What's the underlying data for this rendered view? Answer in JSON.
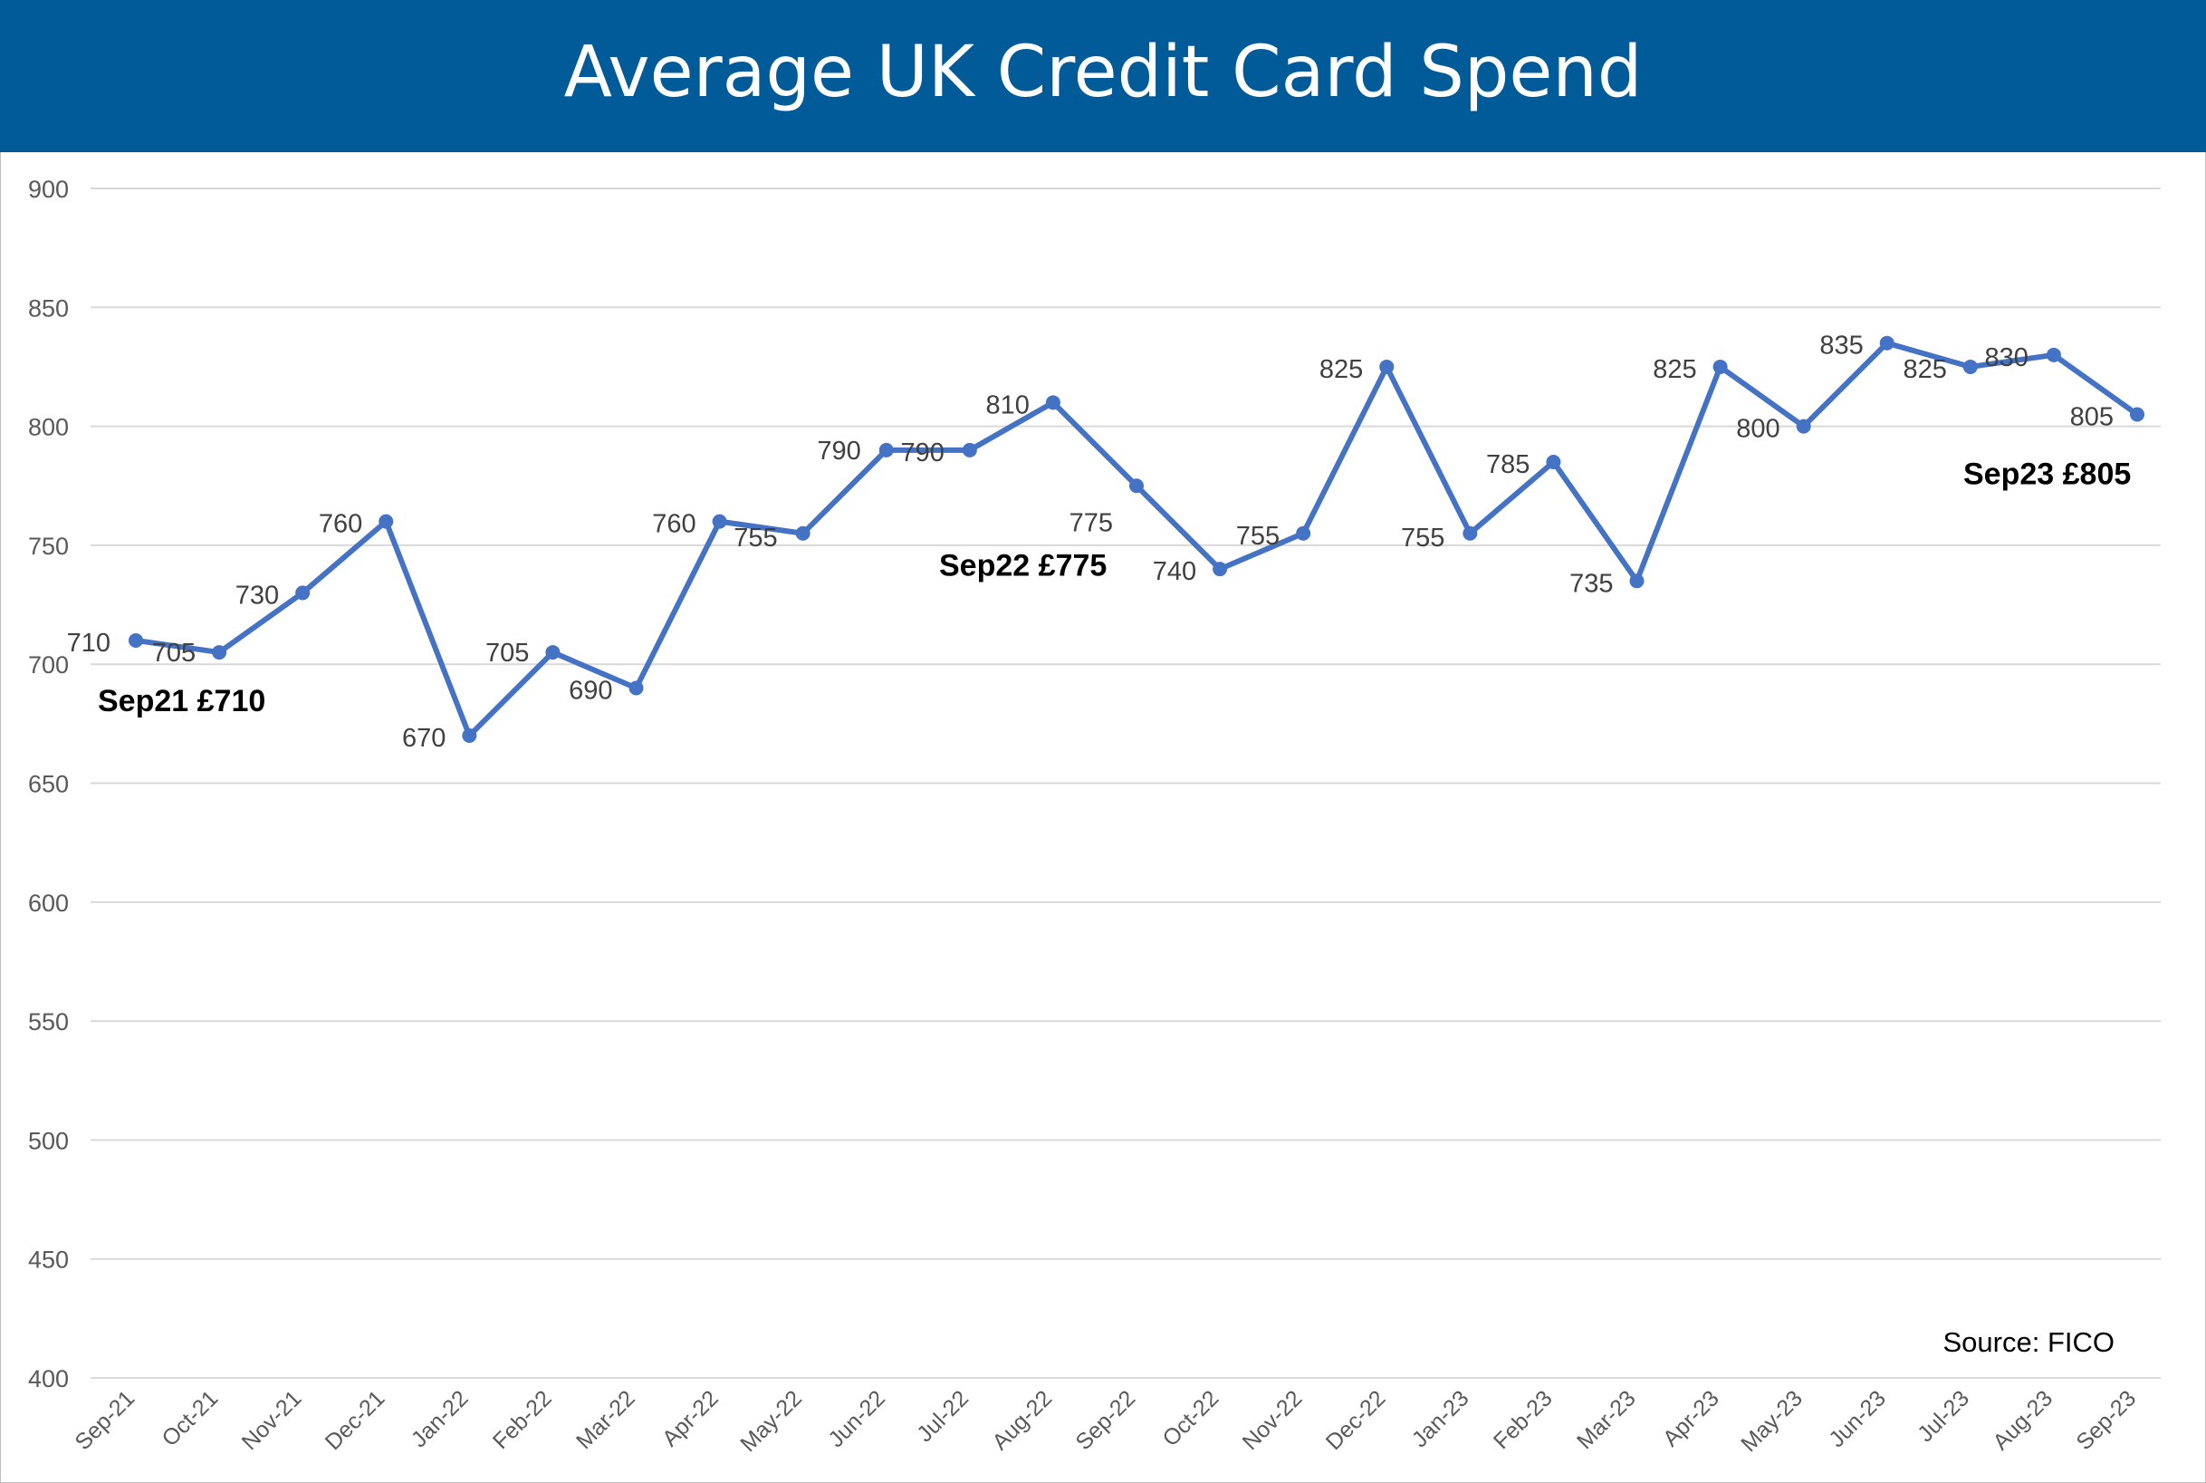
{
  "chart_data": {
    "type": "line",
    "title": "Average UK Credit Card Spend",
    "xlabel": "",
    "ylabel": "",
    "ylim": [
      400,
      900
    ],
    "yticks": [
      400,
      450,
      500,
      550,
      600,
      650,
      700,
      750,
      800,
      850,
      900
    ],
    "grid": true,
    "categories": [
      "Sep-21",
      "Oct-21",
      "Nov-21",
      "Dec-21",
      "Jan-22",
      "Feb-22",
      "Mar-22",
      "Apr-22",
      "May-22",
      "Jun-22",
      "Jul-22",
      "Aug-22",
      "Sep-22",
      "Oct-22",
      "Nov-22",
      "Dec-22",
      "Jan-23",
      "Feb-23",
      "Mar-23",
      "Apr-23",
      "May-23",
      "Jun-23",
      "Jul-23",
      "Aug-23",
      "Sep-23"
    ],
    "series": [
      {
        "values": [
          710,
          705,
          730,
          760,
          670,
          705,
          690,
          760,
          755,
          790,
          790,
          810,
          775,
          740,
          755,
          825,
          755,
          785,
          735,
          825,
          800,
          835,
          825,
          830,
          805
        ],
        "color": "#4472c4"
      }
    ],
    "annotations": [
      {
        "text": "Sep21 £710",
        "category": "Sep-21"
      },
      {
        "text": "Sep22 £775",
        "category": "Sep-22"
      },
      {
        "text": "Sep23 £805",
        "category": "Sep-23"
      }
    ],
    "source": "Source: FICO"
  },
  "colors": {
    "header": "#005b98",
    "series": "#4472c4",
    "grid": "#d9d9d9"
  }
}
